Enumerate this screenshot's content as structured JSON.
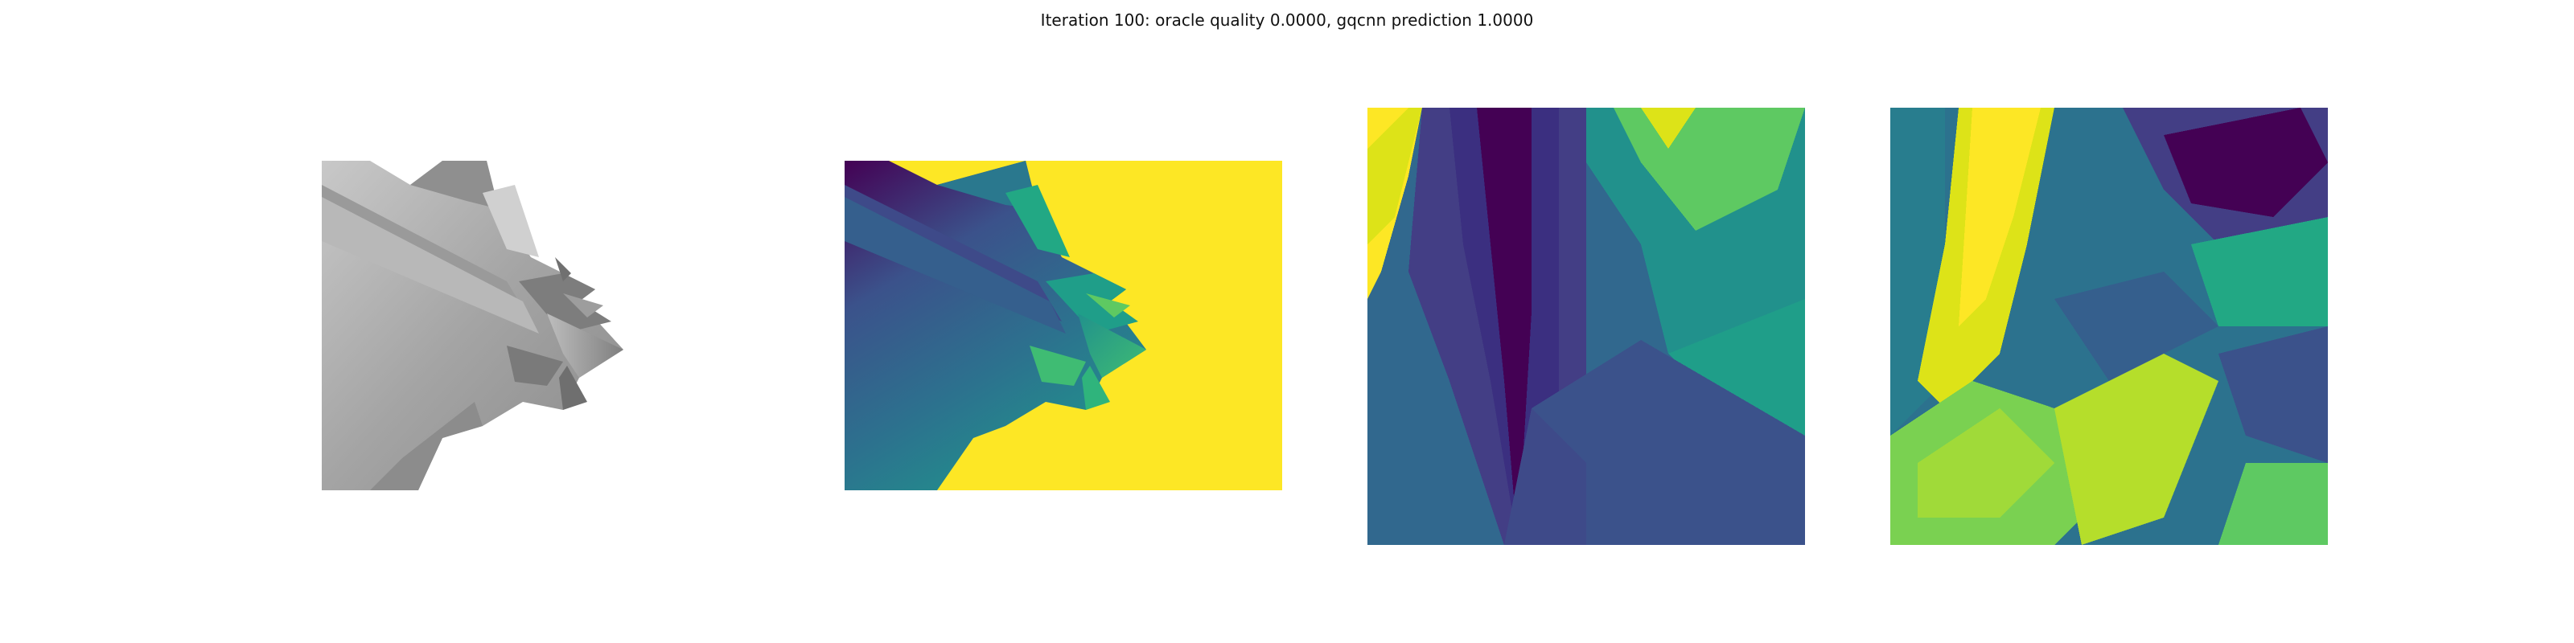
{
  "figure": {
    "title": "Iteration 100: oracle quality 0.0000, gqcnn prediction 1.0000"
  },
  "colors": {
    "viridis_dark": "#440154",
    "viridis_blue": "#3b528b",
    "viridis_teal": "#21918c",
    "viridis_green": "#5ec962",
    "viridis_yellow": "#fde725",
    "gray_object": "#a0a0a0"
  },
  "panels": [
    {
      "kind": "rendered-object-image"
    },
    {
      "kind": "depth-image"
    },
    {
      "kind": "depth-crop"
    },
    {
      "kind": "depth-crop-transformed"
    }
  ]
}
